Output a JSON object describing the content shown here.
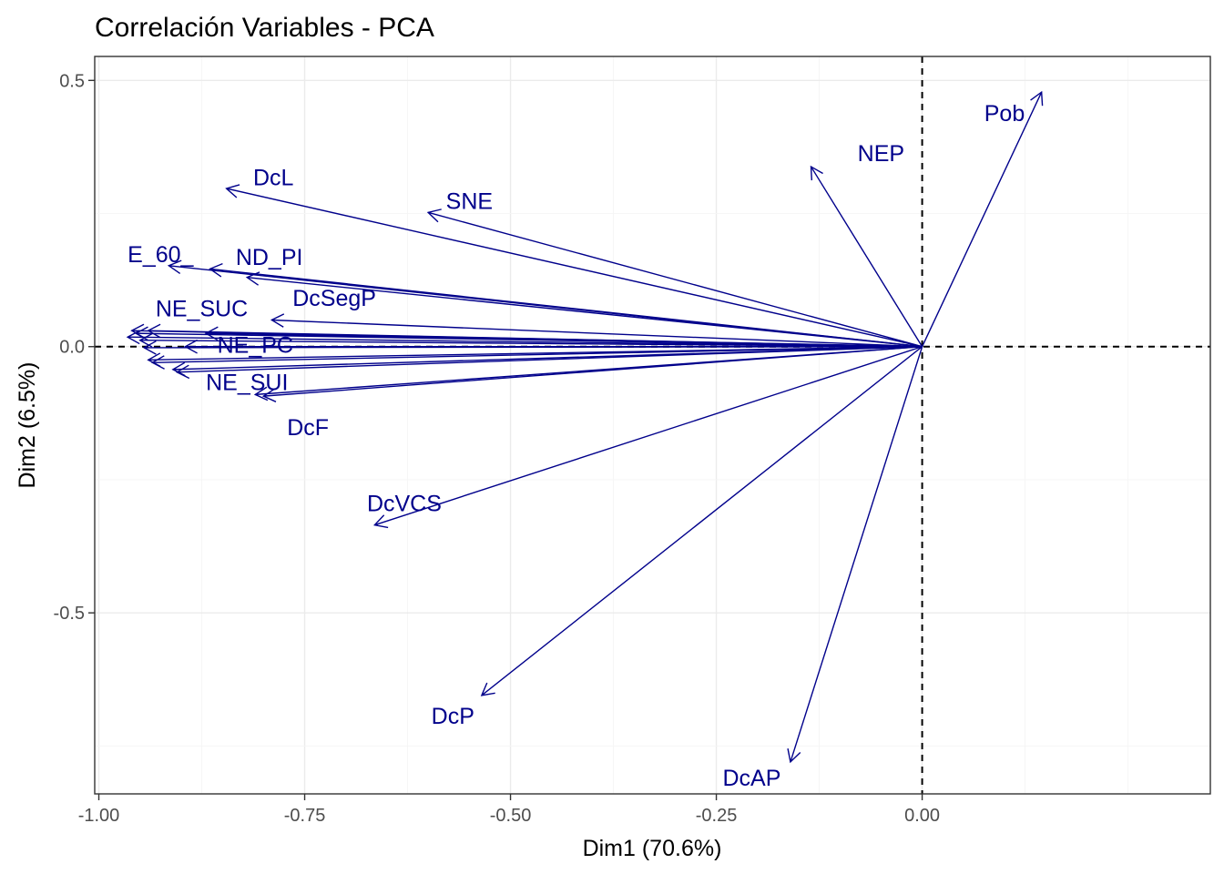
{
  "chart_data": {
    "type": "scatter",
    "subtype": "pca-variable-correlation-arrows",
    "title": "Correlación Variables - PCA",
    "xlabel": "Dim1 (70.6%)",
    "ylabel": "Dim2 (6.5%)",
    "xlim": [
      -1.005,
      0.35
    ],
    "ylim": [
      -0.84,
      0.545
    ],
    "x_ticks": [
      -1.0,
      -0.75,
      -0.5,
      -0.25,
      0.0
    ],
    "x_tick_labels": [
      "-1.00",
      "-0.75",
      "-0.50",
      "-0.25",
      "0.00"
    ],
    "y_ticks": [
      -0.5,
      0.0,
      0.5
    ],
    "y_tick_labels": [
      "-0.5",
      "0.0",
      "0.5"
    ],
    "grid": true,
    "reference_lines": {
      "x": 0.0,
      "y": 0.0,
      "style": "dashed"
    },
    "colors": {
      "arrows": "#00008B",
      "labels": "#00008B",
      "grid_major": "#ebebeb",
      "grid_minor": "#f5f5f5",
      "reference": "#000000"
    },
    "labeled_vectors": [
      {
        "name": "Pob",
        "x": 0.145,
        "y": 0.478
      },
      {
        "name": "NEP",
        "x": -0.135,
        "y": 0.338
      },
      {
        "name": "DcL",
        "x": -0.845,
        "y": 0.297
      },
      {
        "name": "SNE",
        "x": -0.6,
        "y": 0.252
      },
      {
        "name": "E_60_",
        "x": -0.915,
        "y": 0.152
      },
      {
        "name": "ND_PI",
        "x": -0.865,
        "y": 0.146
      },
      {
        "name": "DcSegP",
        "x": -0.79,
        "y": 0.05
      },
      {
        "name": "NE_SUC",
        "x": -0.965,
        "y": 0.018
      },
      {
        "name": "NE_PC",
        "x": -0.895,
        "y": 0.0
      },
      {
        "name": "NE_SUI",
        "x": -0.905,
        "y": -0.048
      },
      {
        "name": "DcF",
        "x": -0.8,
        "y": -0.093
      },
      {
        "name": "DcVCS",
        "x": -0.665,
        "y": -0.335
      },
      {
        "name": "DcP",
        "x": -0.535,
        "y": -0.655
      },
      {
        "name": "DcAP",
        "x": -0.16,
        "y": -0.78
      }
    ],
    "unlabeled_vectors": [
      {
        "x": -0.82,
        "y": 0.13
      },
      {
        "x": -0.96,
        "y": 0.03
      },
      {
        "x": -0.955,
        "y": 0.025
      },
      {
        "x": -0.94,
        "y": 0.03
      },
      {
        "x": -0.87,
        "y": 0.025
      },
      {
        "x": -0.95,
        "y": 0.012
      },
      {
        "x": -0.945,
        "y": -0.002
      },
      {
        "x": -0.94,
        "y": -0.025
      },
      {
        "x": -0.935,
        "y": -0.03
      },
      {
        "x": -0.91,
        "y": -0.043
      },
      {
        "x": -0.81,
        "y": -0.09
      }
    ],
    "label_positions": [
      {
        "name": "Pob",
        "x": 0.1,
        "y": 0.435
      },
      {
        "name": "NEP",
        "x": -0.05,
        "y": 0.36
      },
      {
        "name": "DcL",
        "x": -0.788,
        "y": 0.314
      },
      {
        "name": "SNE",
        "x": -0.55,
        "y": 0.27
      },
      {
        "name": "E_60_",
        "x": -0.925,
        "y": 0.17
      },
      {
        "name": "ND_PI",
        "x": -0.793,
        "y": 0.165
      },
      {
        "name": "DcSegP",
        "x": -0.714,
        "y": 0.088
      },
      {
        "name": "NE_SUC",
        "x": -0.875,
        "y": 0.068
      },
      {
        "name": "NE_PC",
        "x": -0.81,
        "y": 0.0
      },
      {
        "name": "NE_SUI",
        "x": -0.82,
        "y": -0.07
      },
      {
        "name": "DcF",
        "x": -0.746,
        "y": -0.155
      },
      {
        "name": "DcVCS",
        "x": -0.629,
        "y": -0.298
      },
      {
        "name": "DcP",
        "x": -0.57,
        "y": -0.697
      },
      {
        "name": "DcAP",
        "x": -0.207,
        "y": -0.813
      }
    ]
  }
}
